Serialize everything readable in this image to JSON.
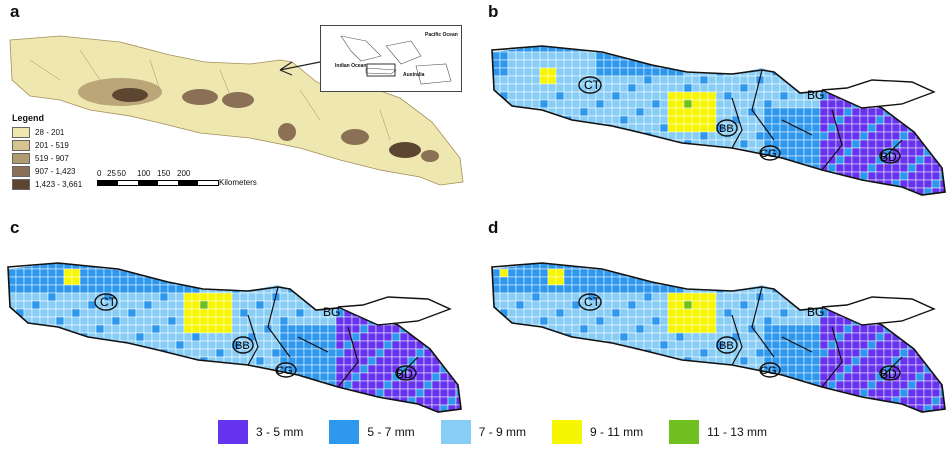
{
  "panels": {
    "a": "a",
    "b": "b",
    "c": "c",
    "d": "d"
  },
  "elevation_legend": {
    "title": "Legend",
    "classes": [
      {
        "label": "28 - 201",
        "color": "#efe7b0"
      },
      {
        "label": "201 - 519",
        "color": "#d6c48f"
      },
      {
        "label": "519 - 907",
        "color": "#b09a70"
      },
      {
        "label": "907 - 1,423",
        "color": "#8a7054"
      },
      {
        "label": "1,423 - 3,661",
        "color": "#5d4631"
      }
    ]
  },
  "scale_bar": {
    "ticks": [
      "0",
      "25",
      "50",
      "100",
      "150",
      "200"
    ],
    "unit": "Kilometers"
  },
  "inset": {
    "pacific": "Pacific Ocean",
    "indian": "Indian Ocean",
    "australia": "Australia"
  },
  "region_labels": {
    "ct": "CT",
    "bg": "BG",
    "bb": "BB",
    "cg": "CG",
    "bd": "BD"
  },
  "rainfall_legend": [
    {
      "label": "3 - 5 mm",
      "color": "#6633ee"
    },
    {
      "label": "5 - 7 mm",
      "color": "#2e97ee"
    },
    {
      "label": "7 - 9 mm",
      "color": "#88cdf6"
    },
    {
      "label": "9 - 11 mm",
      "color": "#f6f600"
    },
    {
      "label": "11 - 13 mm",
      "color": "#6fbf1e"
    }
  ]
}
